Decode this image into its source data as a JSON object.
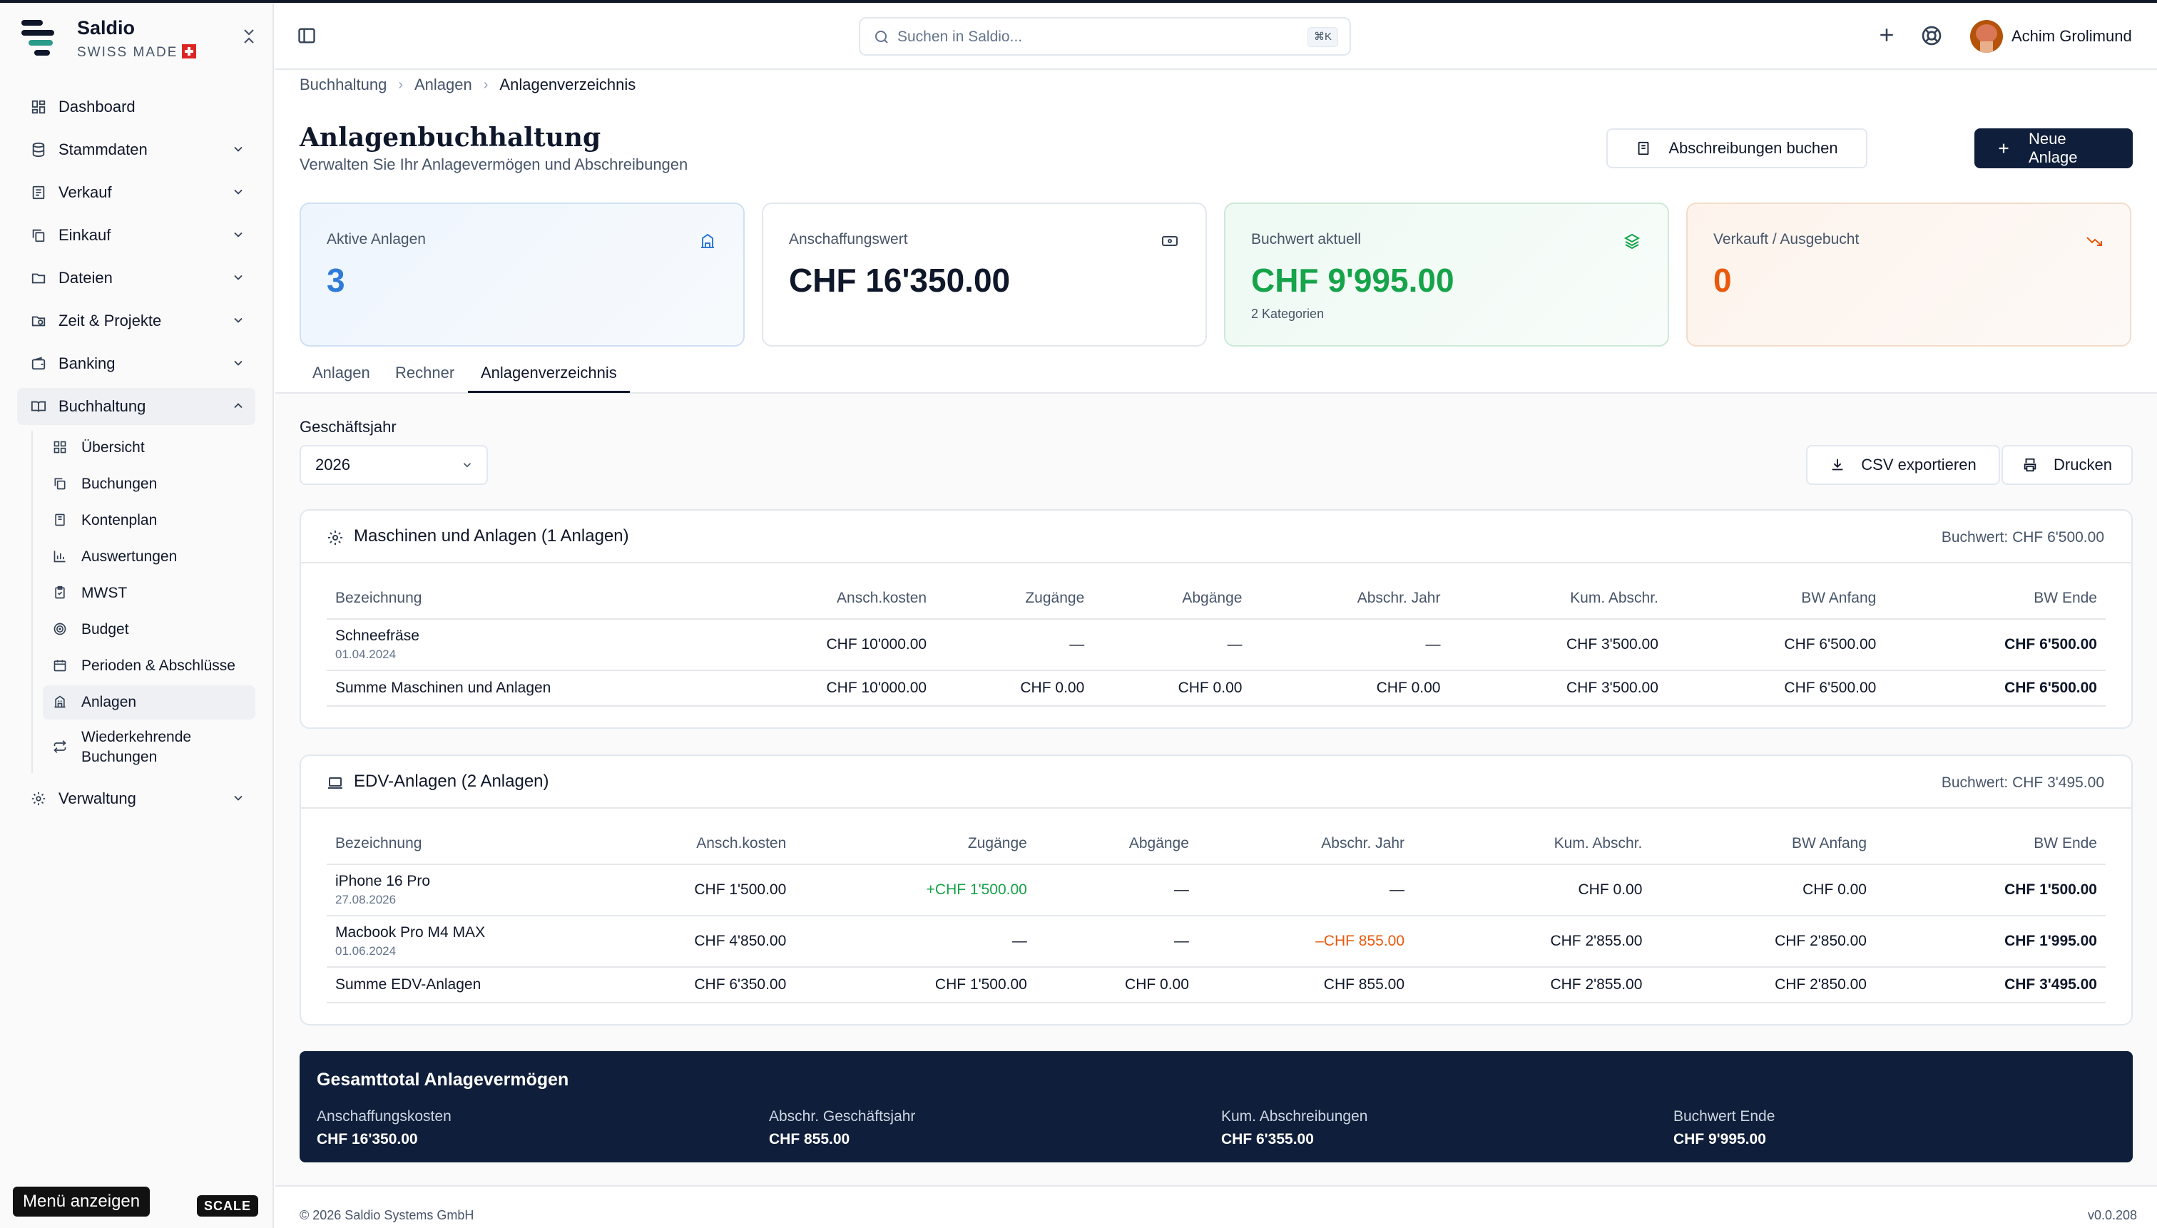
{
  "app": {
    "name": "Saldio",
    "tagline": "SWISS MADE"
  },
  "sidebar": {
    "items": [
      {
        "label": "Dashboard",
        "icon": "dashboard-icon"
      },
      {
        "label": "Stammdaten",
        "icon": "database-icon"
      },
      {
        "label": "Verkauf",
        "icon": "receipt-icon"
      },
      {
        "label": "Einkauf",
        "icon": "copy-icon"
      },
      {
        "label": "Dateien",
        "icon": "folder-icon"
      },
      {
        "label": "Zeit & Projekte",
        "icon": "folder-clock-icon"
      },
      {
        "label": "Banking",
        "icon": "wallet-icon"
      },
      {
        "label": "Buchhaltung",
        "icon": "book-icon"
      },
      {
        "label": "Verwaltung",
        "icon": "gear-icon"
      }
    ],
    "buchhaltung_sub": [
      {
        "label": "Übersicht",
        "icon": "grid-icon"
      },
      {
        "label": "Buchungen",
        "icon": "copy-icon"
      },
      {
        "label": "Kontenplan",
        "icon": "book-icon"
      },
      {
        "label": "Auswertungen",
        "icon": "bar-chart-icon"
      },
      {
        "label": "MWST",
        "icon": "clipboard-icon"
      },
      {
        "label": "Budget",
        "icon": "target-icon"
      },
      {
        "label": "Perioden & Abschlüsse",
        "icon": "calendar-icon"
      },
      {
        "label": "Anlagen",
        "icon": "building-icon"
      },
      {
        "label": "Wiederkehrende Buchungen",
        "icon": "repeat-icon"
      }
    ],
    "menu_button": "Menü anzeigen",
    "scale_badge": "SCALE"
  },
  "topbar": {
    "search_placeholder": "Suchen in Saldio...",
    "search_shortcut": "⌘K",
    "user_name": "Achim Grolimund"
  },
  "breadcrumb": [
    "Buchhaltung",
    "Anlagen",
    "Anlagenverzeichnis"
  ],
  "page": {
    "title": "Anlagenbuchhaltung",
    "subtitle": "Verwalten Sie Ihr Anlagevermögen und Abschreibungen",
    "btn_abschreibungen": "Abschreibungen buchen",
    "btn_neue_anlage": "Neue Anlage"
  },
  "kpis": [
    {
      "label": "Aktive Anlagen",
      "value": "3",
      "note": "",
      "color": "#2f7bd8",
      "icon": "building-icon"
    },
    {
      "label": "Anschaffungswert",
      "value": "CHF 16'350.00",
      "note": "",
      "color": "#0f172a",
      "icon": "banknote-icon"
    },
    {
      "label": "Buchwert aktuell",
      "value": "CHF 9'995.00",
      "note": "2 Kategorien",
      "color": "#16a34a",
      "icon": "layers-icon"
    },
    {
      "label": "Verkauft / Ausgebucht",
      "value": "0",
      "note": "",
      "color": "#ea580c",
      "icon": "trending-down-icon"
    }
  ],
  "tabs": [
    "Anlagen",
    "Rechner",
    "Anlagenverzeichnis"
  ],
  "filters": {
    "fiscal_year_label": "Geschäftsjahr",
    "fiscal_year_value": "2026",
    "btn_csv": "CSV exportieren",
    "btn_print": "Drucken"
  },
  "columns": [
    "Bezeichnung",
    "Ansch.kosten",
    "Zugänge",
    "Abgänge",
    "Abschr. Jahr",
    "Kum. Abschr.",
    "BW Anfang",
    "BW Ende"
  ],
  "categories": [
    {
      "title": "Maschinen und Anlagen (1 Anlagen)",
      "buchwert": "Buchwert: CHF 6'500.00",
      "icon": "gear-icon",
      "rows": [
        {
          "name": "Schneefräse",
          "date": "01.04.2024",
          "cost": "CHF 10'000.00",
          "add": "—",
          "disp": "—",
          "dep_year": "—",
          "cum_dep": "CHF 3'500.00",
          "bw_start": "CHF 6'500.00",
          "bw_end": "CHF 6'500.00"
        }
      ],
      "sum": {
        "name": "Summe Maschinen und Anlagen",
        "cost": "CHF 10'000.00",
        "add": "CHF 0.00",
        "disp": "CHF 0.00",
        "dep_year": "CHF 0.00",
        "cum_dep": "CHF 3'500.00",
        "bw_start": "CHF 6'500.00",
        "bw_end": "CHF 6'500.00"
      }
    },
    {
      "title": "EDV-Anlagen (2 Anlagen)",
      "buchwert": "Buchwert: CHF 3'495.00",
      "icon": "laptop-icon",
      "rows": [
        {
          "name": "iPhone 16 Pro",
          "date": "27.08.2026",
          "cost": "CHF 1'500.00",
          "add": "+CHF 1'500.00",
          "disp": "—",
          "dep_year": "—",
          "cum_dep": "CHF 0.00",
          "bw_start": "CHF 0.00",
          "bw_end": "CHF 1'500.00"
        },
        {
          "name": "Macbook Pro M4 MAX",
          "date": "01.06.2024",
          "cost": "CHF 4'850.00",
          "add": "—",
          "disp": "—",
          "dep_year": "–CHF 855.00",
          "cum_dep": "CHF 2'855.00",
          "bw_start": "CHF 2'850.00",
          "bw_end": "CHF 1'995.00"
        }
      ],
      "sum": {
        "name": "Summe EDV-Anlagen",
        "cost": "CHF 6'350.00",
        "add": "CHF 1'500.00",
        "disp": "CHF 0.00",
        "dep_year": "CHF 855.00",
        "cum_dep": "CHF 2'855.00",
        "bw_start": "CHF 2'850.00",
        "bw_end": "CHF 3'495.00"
      }
    }
  ],
  "total": {
    "title": "Gesamttotal Anlagevermögen",
    "items": [
      {
        "label": "Anschaffungskosten",
        "value": "CHF 16'350.00"
      },
      {
        "label": "Abschr. Geschäftsjahr",
        "value": "CHF 855.00"
      },
      {
        "label": "Kum. Abschreibungen",
        "value": "CHF 6'355.00"
      },
      {
        "label": "Buchwert Ende",
        "value": "CHF 9'995.00"
      }
    ]
  },
  "footer": {
    "copyright": "© 2026 Saldio Systems GmbH",
    "version": "v0.0.208"
  },
  "colors": {
    "accent_dark": "#0f1e3a",
    "positive": "#16a34a",
    "negative": "#ea580c",
    "info": "#2f7bd8"
  }
}
